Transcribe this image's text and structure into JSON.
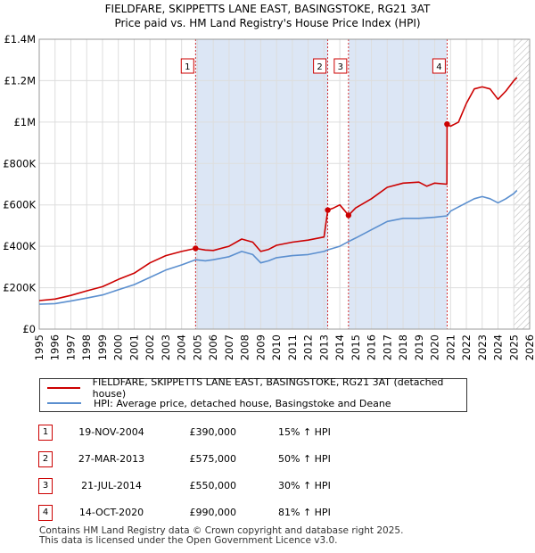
{
  "title": {
    "line1": "FIELDFARE, SKIPPETTS LANE EAST, BASINGSTOKE, RG21 3AT",
    "line2": "Price paid vs. HM Land Registry's House Price Index (HPI)"
  },
  "colors": {
    "property": "#cc0000",
    "hpi": "#5b8fcf",
    "shade": "#dce6f5"
  },
  "chart_data": {
    "type": "line",
    "title": "Price paid vs. HM Land Registry's House Price Index (HPI)",
    "xlabel": "",
    "ylabel": "",
    "xlim": [
      1995,
      2026
    ],
    "ylim": [
      0,
      1400000
    ],
    "y_ticks": [
      {
        "value": 0,
        "label": "£0"
      },
      {
        "value": 200000,
        "label": "£200K"
      },
      {
        "value": 400000,
        "label": "£400K"
      },
      {
        "value": 600000,
        "label": "£600K"
      },
      {
        "value": 800000,
        "label": "£800K"
      },
      {
        "value": 1000000,
        "label": "£1M"
      },
      {
        "value": 1200000,
        "label": "£1.2M"
      },
      {
        "value": 1400000,
        "label": "£1.4M"
      }
    ],
    "x_ticks": [
      1995,
      1996,
      1997,
      1998,
      1999,
      2000,
      2001,
      2002,
      2003,
      2004,
      2005,
      2006,
      2007,
      2008,
      2009,
      2010,
      2011,
      2012,
      2013,
      2014,
      2015,
      2016,
      2017,
      2018,
      2019,
      2020,
      2021,
      2022,
      2023,
      2024,
      2025,
      2026
    ],
    "grid": true,
    "series": [
      {
        "name": "FIELDFARE, SKIPPETTS LANE EAST, BASINGSTOKE, RG21 3AT (detached house)",
        "color": "#cc0000",
        "points": [
          [
            1995.0,
            138000
          ],
          [
            1996.0,
            145000
          ],
          [
            1997.0,
            163000
          ],
          [
            1998.0,
            185000
          ],
          [
            1999.0,
            205000
          ],
          [
            2000.0,
            240000
          ],
          [
            2001.0,
            270000
          ],
          [
            2002.0,
            320000
          ],
          [
            2003.0,
            355000
          ],
          [
            2004.0,
            375000
          ],
          [
            2004.88,
            390000
          ],
          [
            2005.5,
            382000
          ],
          [
            2006.0,
            380000
          ],
          [
            2007.0,
            400000
          ],
          [
            2007.8,
            435000
          ],
          [
            2008.5,
            420000
          ],
          [
            2009.0,
            375000
          ],
          [
            2009.5,
            385000
          ],
          [
            2010.0,
            405000
          ],
          [
            2011.0,
            420000
          ],
          [
            2012.0,
            430000
          ],
          [
            2013.0,
            445000
          ],
          [
            2013.24,
            575000
          ],
          [
            2013.6,
            585000
          ],
          [
            2014.0,
            600000
          ],
          [
            2014.55,
            550000
          ],
          [
            2015.0,
            585000
          ],
          [
            2016.0,
            630000
          ],
          [
            2017.0,
            685000
          ],
          [
            2018.0,
            705000
          ],
          [
            2019.0,
            710000
          ],
          [
            2019.5,
            690000
          ],
          [
            2020.0,
            705000
          ],
          [
            2020.77,
            700000
          ],
          [
            2020.78,
            990000
          ],
          [
            2021.0,
            980000
          ],
          [
            2021.5,
            1000000
          ],
          [
            2022.0,
            1090000
          ],
          [
            2022.5,
            1160000
          ],
          [
            2023.0,
            1170000
          ],
          [
            2023.5,
            1160000
          ],
          [
            2024.0,
            1110000
          ],
          [
            2024.5,
            1150000
          ],
          [
            2025.0,
            1200000
          ],
          [
            2025.2,
            1215000
          ]
        ]
      },
      {
        "name": "HPI: Average price, detached house, Basingstoke and Deane",
        "color": "#5b8fcf",
        "points": [
          [
            1995.0,
            120000
          ],
          [
            1996.0,
            123000
          ],
          [
            1997.0,
            136000
          ],
          [
            1998.0,
            150000
          ],
          [
            1999.0,
            165000
          ],
          [
            2000.0,
            190000
          ],
          [
            2001.0,
            215000
          ],
          [
            2002.0,
            250000
          ],
          [
            2003.0,
            285000
          ],
          [
            2004.0,
            310000
          ],
          [
            2004.88,
            335000
          ],
          [
            2005.5,
            330000
          ],
          [
            2006.0,
            335000
          ],
          [
            2007.0,
            350000
          ],
          [
            2007.8,
            375000
          ],
          [
            2008.5,
            360000
          ],
          [
            2009.0,
            320000
          ],
          [
            2009.5,
            330000
          ],
          [
            2010.0,
            345000
          ],
          [
            2011.0,
            355000
          ],
          [
            2012.0,
            360000
          ],
          [
            2013.0,
            375000
          ],
          [
            2013.24,
            383000
          ],
          [
            2014.0,
            400000
          ],
          [
            2014.55,
            423000
          ],
          [
            2015.0,
            440000
          ],
          [
            2016.0,
            480000
          ],
          [
            2017.0,
            520000
          ],
          [
            2018.0,
            535000
          ],
          [
            2019.0,
            535000
          ],
          [
            2020.0,
            540000
          ],
          [
            2020.78,
            547000
          ],
          [
            2021.0,
            570000
          ],
          [
            2022.0,
            610000
          ],
          [
            2022.5,
            630000
          ],
          [
            2023.0,
            640000
          ],
          [
            2023.5,
            630000
          ],
          [
            2024.0,
            610000
          ],
          [
            2024.5,
            630000
          ],
          [
            2025.0,
            655000
          ],
          [
            2025.2,
            670000
          ]
        ]
      }
    ],
    "sales": [
      {
        "label": "1",
        "x": 2004.88,
        "value": 390000
      },
      {
        "label": "2",
        "x": 2013.24,
        "value": 575000
      },
      {
        "label": "3",
        "x": 2014.55,
        "value": 550000
      },
      {
        "label": "4",
        "x": 2020.78,
        "value": 990000
      }
    ],
    "shaded_ranges": [
      [
        2004.88,
        2013.24
      ],
      [
        2014.55,
        2020.78
      ]
    ],
    "hatched_from": 2025.0
  },
  "legend": {
    "property": "FIELDFARE, SKIPPETTS LANE EAST, BASINGSTOKE, RG21 3AT (detached house)",
    "hpi": "HPI: Average price, detached house, Basingstoke and Deane"
  },
  "sales_table": [
    {
      "num": "1",
      "date": "19-NOV-2004",
      "price": "£390,000",
      "hpi": "15% ↑ HPI"
    },
    {
      "num": "2",
      "date": "27-MAR-2013",
      "price": "£575,000",
      "hpi": "50% ↑ HPI"
    },
    {
      "num": "3",
      "date": "21-JUL-2014",
      "price": "£550,000",
      "hpi": "30% ↑ HPI"
    },
    {
      "num": "4",
      "date": "14-OCT-2020",
      "price": "£990,000",
      "hpi": "81% ↑ HPI"
    }
  ],
  "footer": {
    "line1": "Contains HM Land Registry data © Crown copyright and database right 2025.",
    "line2": "This data is licensed under the Open Government Licence v3.0."
  }
}
